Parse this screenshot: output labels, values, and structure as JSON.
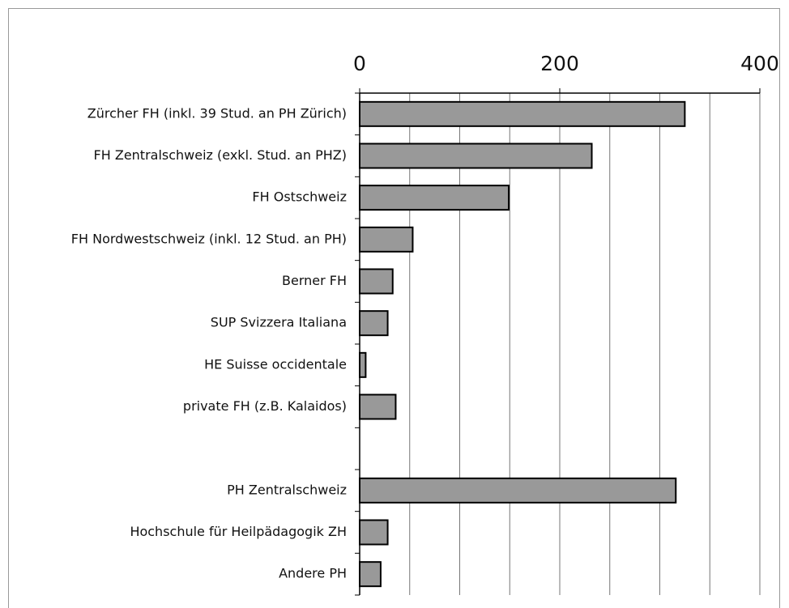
{
  "chart_data": {
    "type": "bar",
    "orientation": "horizontal",
    "categories": [
      "Zürcher FH (inkl. 39 Stud. an PH Zürich)",
      "FH Zentralschweiz (exkl. Stud. an PHZ)",
      "FH Ostschweiz",
      "FH Nordwestschweiz (inkl. 12 Stud. an PH)",
      "Berner FH",
      "SUP Svizzera Italiana",
      "HE Suisse occidentale",
      "private FH (z.B. Kalaidos)",
      null,
      "PH Zentralschweiz",
      "Hochschule für Heilpädagogik ZH",
      "Andere PH"
    ],
    "values": [
      325,
      232,
      149,
      53,
      33,
      28,
      6,
      36,
      null,
      316,
      28,
      21
    ],
    "color": "#999999",
    "xlim": [
      0,
      400
    ],
    "xticks": [
      0,
      200,
      400
    ],
    "xgrid": [
      0,
      50,
      100,
      150,
      200,
      250,
      300,
      350,
      400
    ],
    "grid": true
  }
}
